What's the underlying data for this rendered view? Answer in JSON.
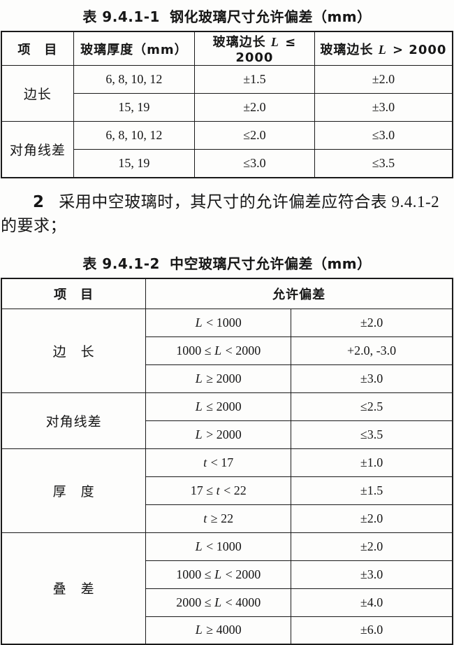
{
  "table1": {
    "title": {
      "label": "表 9.4.1-1",
      "text": "钢化玻璃尺寸允许偏差（mm）"
    },
    "headers": {
      "item": "项　目",
      "thickness": "玻璃厚度（mm）",
      "len_le": {
        "pre": "玻璃边长 ",
        "var": "L",
        "post": " ≤ 2000"
      },
      "len_gt": {
        "pre": "玻璃边长 ",
        "var": "L",
        "post": " > 2000"
      }
    },
    "groups": [
      {
        "label": "边长",
        "rows": [
          {
            "thickness": "6, 8, 10, 12",
            "le": "±1.5",
            "gt": "±2.0"
          },
          {
            "thickness": "15, 19",
            "le": "±2.0",
            "gt": "±3.0"
          }
        ]
      },
      {
        "label": "对角线差",
        "rows": [
          {
            "thickness": "6, 8, 10, 12",
            "le": "≤2.0",
            "gt": "≤3.0"
          },
          {
            "thickness": "15, 19",
            "le": "≤3.0",
            "gt": "≤3.5"
          }
        ]
      }
    ]
  },
  "paragraph": {
    "number": "2",
    "line1": "采用中空玻璃时，其尺寸的允许偏差应符合表 9.4.1-2",
    "line2": "的要求；"
  },
  "table2": {
    "title": {
      "label": "表 9.4.1-2",
      "text": "中空玻璃尺寸允许偏差（mm）"
    },
    "headers": {
      "item": "项　目",
      "tolerance": "允许偏差"
    },
    "groups": [
      {
        "label": "边　长",
        "rows": [
          {
            "cond": {
              "pre": "",
              "var": "L",
              "post": " < 1000"
            },
            "value": "±2.0"
          },
          {
            "cond": {
              "pre": "1000 ≤ ",
              "var": "L",
              "post": " < 2000"
            },
            "value": "+2.0, -3.0"
          },
          {
            "cond": {
              "pre": "",
              "var": "L",
              "post": " ≥ 2000"
            },
            "value": "±3.0"
          }
        ]
      },
      {
        "label": "对角线差",
        "rows": [
          {
            "cond": {
              "pre": "",
              "var": "L",
              "post": " ≤ 2000"
            },
            "value": "≤2.5"
          },
          {
            "cond": {
              "pre": "",
              "var": "L",
              "post": " > 2000"
            },
            "value": "≤3.5"
          }
        ]
      },
      {
        "label": "厚　度",
        "rows": [
          {
            "cond": {
              "pre": "",
              "var": "t",
              "post": " < 17"
            },
            "value": "±1.0"
          },
          {
            "cond": {
              "pre": "17 ≤ ",
              "var": "t",
              "post": " < 22"
            },
            "value": "±1.5"
          },
          {
            "cond": {
              "pre": "",
              "var": "t",
              "post": " ≥ 22"
            },
            "value": "±2.0"
          }
        ]
      },
      {
        "label": "叠　差",
        "rows": [
          {
            "cond": {
              "pre": "",
              "var": "L",
              "post": " < 1000"
            },
            "value": "±2.0"
          },
          {
            "cond": {
              "pre": "1000 ≤ ",
              "var": "L",
              "post": " < 2000"
            },
            "value": "±3.0"
          },
          {
            "cond": {
              "pre": "2000 ≤ ",
              "var": "L",
              "post": " < 4000"
            },
            "value": "±4.0"
          },
          {
            "cond": {
              "pre": "",
              "var": "L",
              "post": " ≥ 4000"
            },
            "value": "±6.0"
          }
        ]
      }
    ]
  }
}
